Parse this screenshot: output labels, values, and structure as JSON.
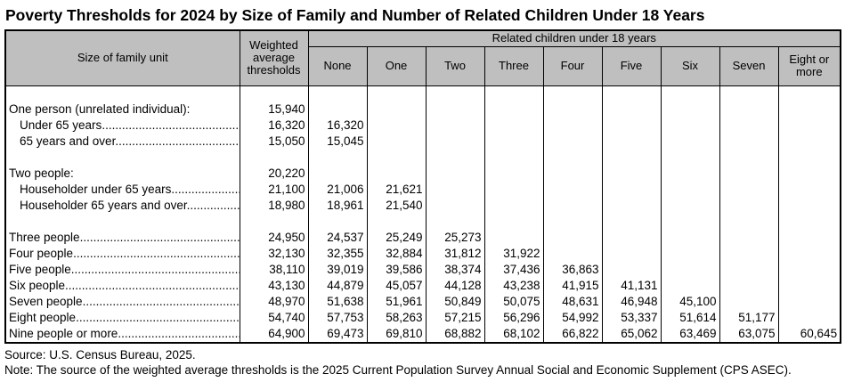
{
  "title": "Poverty Thresholds for 2024 by Size of Family and Number of Related Children Under 18 Years",
  "colors": {
    "header_bg": "#bfbfbf",
    "border": "#000000",
    "text": "#000000",
    "background": "#ffffff"
  },
  "table": {
    "size_col_header": "Size of family unit",
    "weighted_col_header": "Weighted average thresholds",
    "group_header": "Related children under 18 years",
    "child_cols": [
      "None",
      "One",
      "Two",
      "Three",
      "Four",
      "Five",
      "Six",
      "Seven",
      "Eight or more"
    ],
    "rows": [
      {
        "label": "",
        "indent": false,
        "dots": false,
        "threshold": "",
        "values": []
      },
      {
        "label": "One person (unrelated individual):",
        "indent": false,
        "dots": false,
        "threshold": "15,940",
        "values": []
      },
      {
        "label": "Under 65 years",
        "indent": true,
        "dots": true,
        "threshold": "16,320",
        "values": [
          "16,320"
        ]
      },
      {
        "label": "65 years and over",
        "indent": true,
        "dots": true,
        "threshold": "15,050",
        "values": [
          "15,045"
        ]
      },
      {
        "label": "",
        "indent": false,
        "dots": false,
        "threshold": "",
        "values": []
      },
      {
        "label": "Two people:",
        "indent": false,
        "dots": false,
        "threshold": "20,220",
        "values": []
      },
      {
        "label": "Householder under 65 years",
        "indent": true,
        "dots": true,
        "threshold": "21,100",
        "values": [
          "21,006",
          "21,621"
        ]
      },
      {
        "label": "Householder 65 years and over",
        "indent": true,
        "dots": true,
        "threshold": "18,980",
        "values": [
          "18,961",
          "21,540"
        ]
      },
      {
        "label": "",
        "indent": false,
        "dots": false,
        "threshold": "",
        "values": []
      },
      {
        "label": "Three people",
        "indent": false,
        "dots": true,
        "threshold": "24,950",
        "values": [
          "24,537",
          "25,249",
          "25,273"
        ]
      },
      {
        "label": "Four people",
        "indent": false,
        "dots": true,
        "threshold": "32,130",
        "values": [
          "32,355",
          "32,884",
          "31,812",
          "31,922"
        ]
      },
      {
        "label": "Five people",
        "indent": false,
        "dots": true,
        "threshold": "38,110",
        "values": [
          "39,019",
          "39,586",
          "38,374",
          "37,436",
          "36,863"
        ]
      },
      {
        "label": "Six people",
        "indent": false,
        "dots": true,
        "threshold": "43,130",
        "values": [
          "44,879",
          "45,057",
          "44,128",
          "43,238",
          "41,915",
          "41,131"
        ]
      },
      {
        "label": "Seven people",
        "indent": false,
        "dots": true,
        "threshold": "48,970",
        "values": [
          "51,638",
          "51,961",
          "50,849",
          "50,075",
          "48,631",
          "46,948",
          "45,100"
        ]
      },
      {
        "label": "Eight people",
        "indent": false,
        "dots": true,
        "threshold": "54,740",
        "values": [
          "57,753",
          "58,263",
          "57,215",
          "56,296",
          "54,992",
          "53,337",
          "51,614",
          "51,177"
        ]
      },
      {
        "label": "Nine people or more",
        "indent": false,
        "dots": true,
        "threshold": "64,900",
        "values": [
          "69,473",
          "69,810",
          "68,882",
          "68,102",
          "66,822",
          "65,062",
          "63,469",
          "63,075",
          "60,645"
        ]
      }
    ]
  },
  "footer": {
    "source": "Source: U.S. Census Bureau, 2025.",
    "note": "Note: The source of the weighted average thresholds is the 2025 Current Population Survey Annual Social and Economic Supplement (CPS ASEC)."
  },
  "chart_data": {
    "type": "table",
    "title": "Poverty Thresholds for 2024 by Size of Family and Number of Related Children Under 18 Years",
    "columns": [
      "Size of family unit",
      "Weighted average thresholds",
      "None",
      "One",
      "Two",
      "Three",
      "Four",
      "Five",
      "Six",
      "Seven",
      "Eight or more"
    ],
    "column_group": {
      "label": "Related children under 18 years",
      "spans": [
        "None",
        "One",
        "Two",
        "Three",
        "Four",
        "Five",
        "Six",
        "Seven",
        "Eight or more"
      ]
    },
    "rows": [
      [
        "One person (unrelated individual):",
        15940,
        null,
        null,
        null,
        null,
        null,
        null,
        null,
        null,
        null
      ],
      [
        "Under 65 years",
        16320,
        16320,
        null,
        null,
        null,
        null,
        null,
        null,
        null,
        null
      ],
      [
        "65 years and over",
        15050,
        15045,
        null,
        null,
        null,
        null,
        null,
        null,
        null,
        null
      ],
      [
        "Two people:",
        20220,
        null,
        null,
        null,
        null,
        null,
        null,
        null,
        null,
        null
      ],
      [
        "Householder under 65 years",
        21100,
        21006,
        21621,
        null,
        null,
        null,
        null,
        null,
        null,
        null
      ],
      [
        "Householder 65 years and over",
        18980,
        18961,
        21540,
        null,
        null,
        null,
        null,
        null,
        null,
        null
      ],
      [
        "Three people",
        24950,
        24537,
        25249,
        25273,
        null,
        null,
        null,
        null,
        null,
        null
      ],
      [
        "Four people",
        32130,
        32355,
        32884,
        31812,
        31922,
        null,
        null,
        null,
        null,
        null
      ],
      [
        "Five people",
        38110,
        39019,
        39586,
        38374,
        37436,
        36863,
        null,
        null,
        null,
        null
      ],
      [
        "Six people",
        43130,
        44879,
        45057,
        44128,
        43238,
        41915,
        41131,
        null,
        null,
        null
      ],
      [
        "Seven people",
        48970,
        51638,
        51961,
        50849,
        50075,
        48631,
        46948,
        45100,
        null,
        null
      ],
      [
        "Eight people",
        54740,
        57753,
        58263,
        57215,
        56296,
        54992,
        53337,
        51614,
        51177,
        null
      ],
      [
        "Nine people or more",
        64900,
        69473,
        69810,
        68882,
        68102,
        66822,
        65062,
        63469,
        63075,
        60645
      ]
    ],
    "source": "Source: U.S. Census Bureau, 2025.",
    "note": "Note: The source of the weighted average thresholds is the 2025 Current Population Survey Annual Social and Economic Supplement (CPS ASEC)."
  }
}
